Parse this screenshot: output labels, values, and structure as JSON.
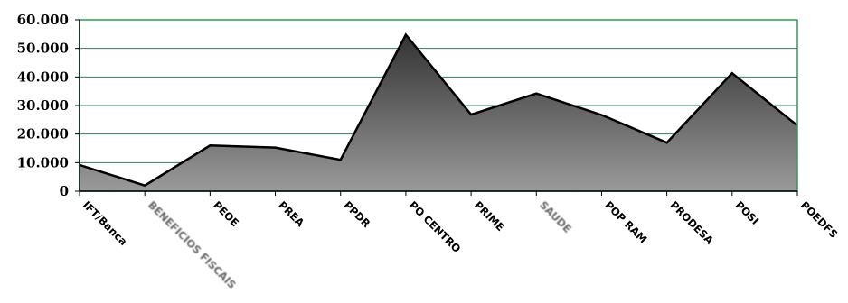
{
  "chart_data": {
    "type": "area",
    "categories": [
      "IFT/Banca",
      "BENEFICIOS FISCAIS",
      "PEOE",
      "PREA",
      "PPDR",
      "PO CENTRO",
      "PRIME",
      "SAUDE",
      "POP RAM",
      "PRODESA",
      "POSI",
      "POEDFS"
    ],
    "values": [
      9200,
      2000,
      16000,
      15300,
      11000,
      54800,
      26800,
      34200,
      26700,
      17000,
      41300,
      23000
    ],
    "y_tick_labels": [
      "0",
      "10.000",
      "20.000",
      "30.000",
      "40.000",
      "50.000",
      "60.000"
    ],
    "ylim": [
      0,
      60000
    ],
    "grid": true,
    "legend": "none",
    "colors": {
      "fill_top": "#333333",
      "fill_bottom": "#9a9a9a",
      "line": "#000000",
      "grid": "#2f7f5f",
      "plot_border": "#2e9a57"
    }
  }
}
